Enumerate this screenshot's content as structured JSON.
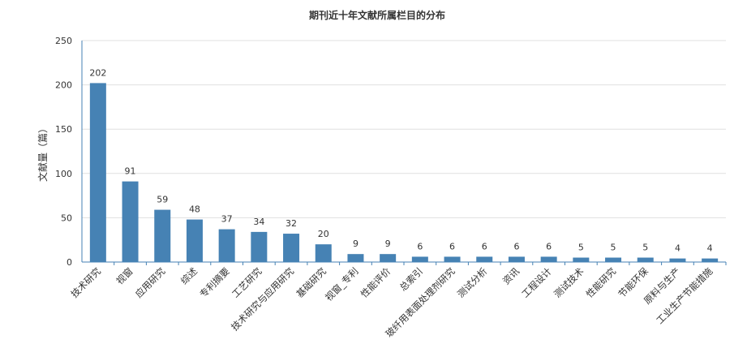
{
  "chart_data": {
    "type": "bar",
    "title": "期刊近十年文献所属栏目的分布",
    "ylabel": "文献量（篇）",
    "xlabel": "",
    "ylim": [
      0,
      250
    ],
    "yticks": [
      0,
      50,
      100,
      150,
      200,
      250
    ],
    "grid": true,
    "legend": "none",
    "bar_color": "#4682b4",
    "categories": [
      "技术研究",
      "视窗",
      "应用研究",
      "综述",
      "专利摘要",
      "工艺研究",
      "技术研究与应用研究",
      "基础研究",
      "视窗_专利",
      "性能评价",
      "总索引",
      "玻纤用表面处理剂研究",
      "测试分析",
      "资讯",
      "工程设计",
      "测试技术",
      "性能研究",
      "节能环保",
      "原料与生产",
      "工业生产节能措施"
    ],
    "values": [
      202,
      91,
      59,
      48,
      37,
      34,
      32,
      20,
      9,
      9,
      6,
      6,
      6,
      6,
      6,
      5,
      5,
      5,
      4,
      4
    ]
  }
}
